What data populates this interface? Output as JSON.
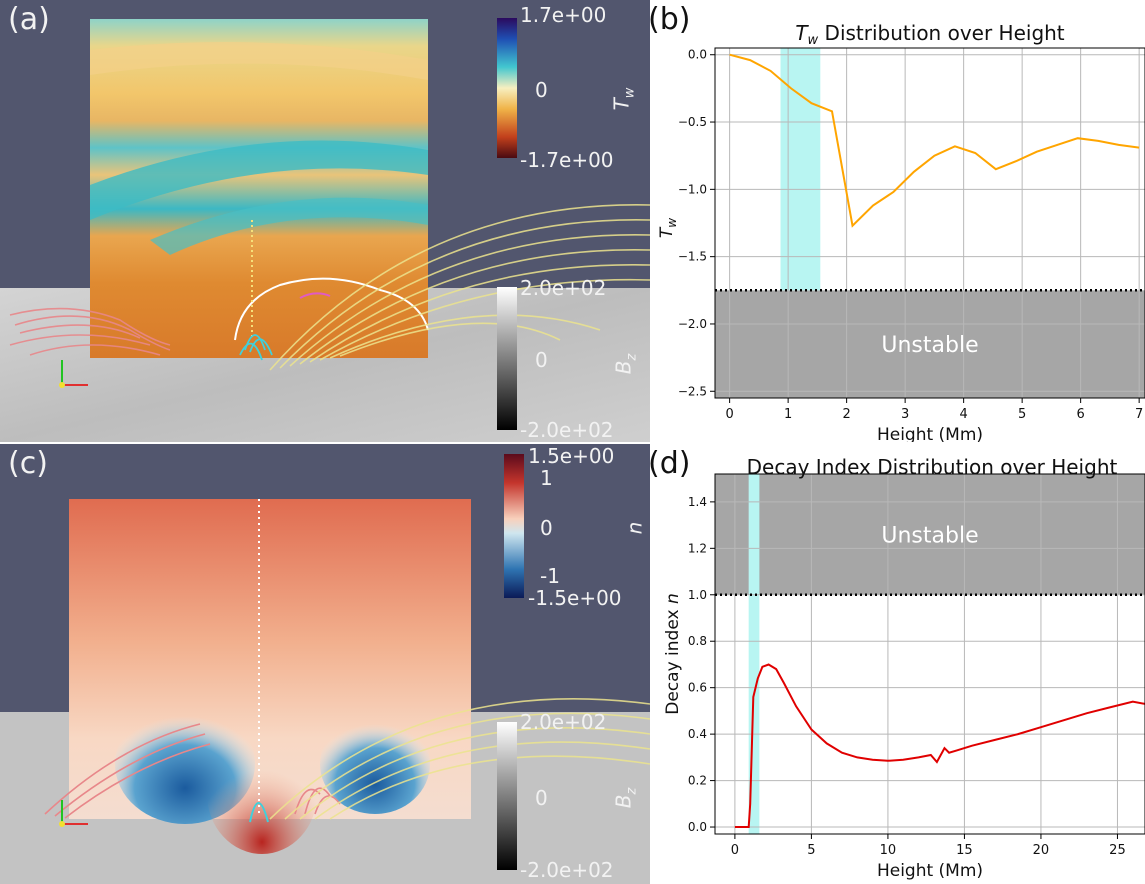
{
  "panels": {
    "a": {
      "label": "(a)",
      "colorbar_top": {
        "title": "T",
        "title_sub": "w",
        "ticks": [
          "1.7e+00",
          "0",
          "-1.7e+00"
        ]
      },
      "colorbar_bottom": {
        "title": "B",
        "title_sub": "z",
        "ticks": [
          "2.0e+02",
          "0",
          "-2.0e+02"
        ]
      }
    },
    "c": {
      "label": "(c)",
      "colorbar_top": {
        "title": "n",
        "ticks": [
          "1.5e+00",
          "1",
          "0",
          "-1",
          "-1.5e+00"
        ]
      },
      "colorbar_bottom": {
        "title": "B",
        "title_sub": "z",
        "ticks": [
          "2.0e+02",
          "0",
          "-2.0e+02"
        ]
      }
    },
    "b": {
      "label": "(b)"
    },
    "d": {
      "label": "(d)"
    }
  },
  "colors": {
    "background_3d": "#52566e",
    "tw_line": "#ffa500",
    "n_line": "#e00000",
    "unstable_region": "#a6a6a6",
    "highlight_band": "#b8f5f2"
  },
  "chart_data": [
    {
      "id": "b",
      "type": "line",
      "title": "T",
      "title_sub": "w",
      "title_rest": " Distribution over Height",
      "xlabel": "Height (Mm)",
      "ylabel": "T",
      "ylabel_sub": "w",
      "xlim": [
        -0.25,
        7.1
      ],
      "ylim": [
        -2.55,
        0.05
      ],
      "xticks": [
        0,
        1,
        2,
        3,
        4,
        5,
        6,
        7
      ],
      "yticks": [
        0.0,
        -0.5,
        -1.0,
        -1.5,
        -2.0,
        -2.5
      ],
      "ytick_labels": [
        "0.0",
        "−0.5",
        "−1.0",
        "−1.5",
        "−2.0",
        "−2.5"
      ],
      "grid": true,
      "threshold": -1.75,
      "unstable_region": {
        "from": -1.75,
        "to": -2.55,
        "label": "Unstable"
      },
      "band": [
        0.87,
        1.55
      ],
      "series": [
        {
          "x": [
            0,
            0.35,
            0.7,
            1.05,
            1.4,
            1.75,
            2.1,
            2.45,
            2.8,
            3.15,
            3.5,
            3.85,
            4.2,
            4.55,
            4.9,
            5.25,
            5.6,
            5.95,
            6.3,
            6.65,
            7.0
          ],
          "values": [
            0.0,
            -0.04,
            -0.12,
            -0.25,
            -0.36,
            -0.42,
            -1.27,
            -1.12,
            -1.02,
            -0.87,
            -0.75,
            -0.68,
            -0.73,
            -0.85,
            -0.79,
            -0.72,
            -0.67,
            -0.62,
            -0.64,
            -0.67,
            -0.69
          ]
        }
      ]
    },
    {
      "id": "d",
      "type": "line",
      "title": "Decay Index Distribution over Height",
      "xlabel": "Height (Mm)",
      "ylabel": "Decay index",
      "ylabel_var": "n",
      "xlim": [
        -1.3,
        26.8
      ],
      "ylim": [
        -0.03,
        1.52
      ],
      "xticks": [
        0,
        5,
        10,
        15,
        20,
        25
      ],
      "yticks": [
        0.0,
        0.2,
        0.4,
        0.6,
        0.8,
        1.0,
        1.2,
        1.4
      ],
      "ytick_labels": [
        "0.0",
        "0.2",
        "0.4",
        "0.6",
        "0.8",
        "1.0",
        "1.2",
        "1.4"
      ],
      "grid": true,
      "threshold": 1.0,
      "unstable_region": {
        "from": 1.0,
        "to": 1.52,
        "label": "Unstable"
      },
      "band": [
        0.9,
        1.6
      ],
      "series": [
        {
          "x": [
            0.0,
            0.5,
            0.9,
            1.0,
            1.2,
            1.5,
            1.8,
            2.2,
            2.7,
            3.2,
            4.0,
            5.0,
            6.0,
            7.0,
            8.0,
            9.0,
            10.0,
            11.0,
            12.0,
            12.8,
            13.2,
            13.7,
            14.0,
            14.5,
            15.5,
            17.0,
            18.5,
            20.0,
            21.5,
            23.0,
            24.5,
            26.0,
            26.8
          ],
          "values": [
            0.0,
            0.0,
            0.0,
            0.1,
            0.56,
            0.64,
            0.69,
            0.7,
            0.68,
            0.62,
            0.52,
            0.42,
            0.36,
            0.32,
            0.3,
            0.29,
            0.285,
            0.29,
            0.3,
            0.31,
            0.28,
            0.34,
            0.32,
            0.33,
            0.35,
            0.375,
            0.4,
            0.43,
            0.46,
            0.49,
            0.515,
            0.54,
            0.53
          ]
        }
      ]
    }
  ]
}
